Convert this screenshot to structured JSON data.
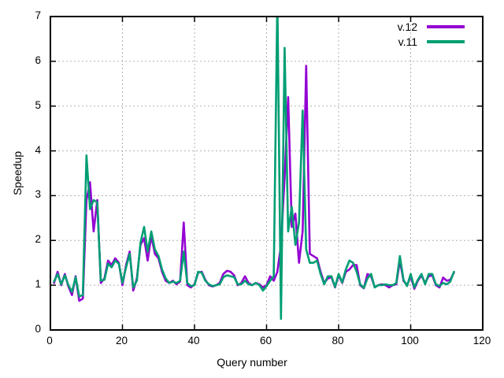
{
  "chart_data": {
    "type": "line",
    "title": "",
    "xlabel": "Query number",
    "ylabel": "Speedup",
    "xlim": [
      0,
      120
    ],
    "ylim": [
      0,
      7
    ],
    "xticks": [
      0,
      20,
      40,
      60,
      80,
      100,
      120
    ],
    "yticks": [
      0,
      1,
      2,
      3,
      4,
      5,
      6,
      7
    ],
    "grid": true,
    "legend_position": "top-right-inside",
    "x": [
      1,
      2,
      3,
      4,
      5,
      6,
      7,
      8,
      9,
      10,
      11,
      12,
      13,
      14,
      15,
      16,
      17,
      18,
      19,
      20,
      21,
      22,
      23,
      24,
      25,
      26,
      27,
      28,
      29,
      30,
      31,
      32,
      33,
      34,
      35,
      36,
      37,
      38,
      39,
      40,
      41,
      42,
      43,
      44,
      45,
      46,
      47,
      48,
      49,
      50,
      51,
      52,
      53,
      54,
      55,
      56,
      57,
      58,
      59,
      60,
      61,
      62,
      63,
      64,
      65,
      66,
      67,
      68,
      69,
      70,
      71,
      72,
      73,
      74,
      75,
      76,
      77,
      78,
      79,
      80,
      81,
      82,
      83,
      84,
      85,
      86,
      87,
      88,
      89,
      90,
      91,
      92,
      93,
      94,
      95,
      96,
      97,
      98,
      99,
      100,
      101,
      102,
      103,
      104,
      105,
      106,
      107,
      108,
      109,
      110,
      111,
      112
    ],
    "series": [
      {
        "name": "v.12",
        "color": "#9400d3",
        "values": [
          1.05,
          1.3,
          1.0,
          1.25,
          0.97,
          0.78,
          1.2,
          0.65,
          0.7,
          2.9,
          3.3,
          2.2,
          2.9,
          1.05,
          1.15,
          1.55,
          1.45,
          1.6,
          1.5,
          1.0,
          1.45,
          1.75,
          0.88,
          1.15,
          1.9,
          2.05,
          1.55,
          2.1,
          1.7,
          1.6,
          1.3,
          1.1,
          1.05,
          1.1,
          1.02,
          1.08,
          2.4,
          1.0,
          0.95,
          1.02,
          1.28,
          1.3,
          1.12,
          1.0,
          0.97,
          1.0,
          1.05,
          1.25,
          1.32,
          1.3,
          1.22,
          1.0,
          1.05,
          1.2,
          1.05,
          1.0,
          1.05,
          1.02,
          0.95,
          1.0,
          1.2,
          1.1,
          1.3,
          1.9,
          3.4,
          5.2,
          2.3,
          2.6,
          1.5,
          2.2,
          5.9,
          1.7,
          1.65,
          1.6,
          1.3,
          1.05,
          1.15,
          1.18,
          0.95,
          1.22,
          1.05,
          1.3,
          1.35,
          1.45,
          1.45,
          1.0,
          0.93,
          1.25,
          1.2,
          0.96,
          1.0,
          1.02,
          1.0,
          0.95,
          1.0,
          1.02,
          1.55,
          1.1,
          1.0,
          1.2,
          0.92,
          1.1,
          1.22,
          1.05,
          1.2,
          1.22,
          1.0,
          0.95,
          1.17,
          1.1,
          1.12,
          1.28
        ]
      },
      {
        "name": "v.11",
        "color": "#009e73",
        "values": [
          1.08,
          1.25,
          1.02,
          1.22,
          1.0,
          0.85,
          1.18,
          0.75,
          0.78,
          3.9,
          2.7,
          2.9,
          2.85,
          1.1,
          1.12,
          1.48,
          1.4,
          1.55,
          1.48,
          1.05,
          1.4,
          1.7,
          0.95,
          1.1,
          1.95,
          2.3,
          1.75,
          2.2,
          1.8,
          1.65,
          1.35,
          1.15,
          1.05,
          1.08,
          1.05,
          1.1,
          1.75,
          1.05,
          0.98,
          1.0,
          1.3,
          1.28,
          1.1,
          1.02,
          0.98,
          1.0,
          1.02,
          1.18,
          1.22,
          1.2,
          1.18,
          1.02,
          1.02,
          1.1,
          1.02,
          1.0,
          1.05,
          1.0,
          0.88,
          0.98,
          1.1,
          1.2,
          7.4,
          0.25,
          6.3,
          2.2,
          2.75,
          1.9,
          2.4,
          4.9,
          1.8,
          1.5,
          1.5,
          1.55,
          1.25,
          1.02,
          1.2,
          1.2,
          0.96,
          1.25,
          1.06,
          1.35,
          1.55,
          1.5,
          1.3,
          1.02,
          0.94,
          1.15,
          1.25,
          0.95,
          1.0,
          1.0,
          1.02,
          1.0,
          1.0,
          1.05,
          1.65,
          1.12,
          0.98,
          1.25,
          0.95,
          1.12,
          1.25,
          1.02,
          1.25,
          1.25,
          1.02,
          0.98,
          1.05,
          1.02,
          1.08,
          1.3
        ]
      }
    ]
  },
  "colors": {
    "background": "#ffffff",
    "axis": "#000000",
    "grid": "#b0b0b0"
  }
}
